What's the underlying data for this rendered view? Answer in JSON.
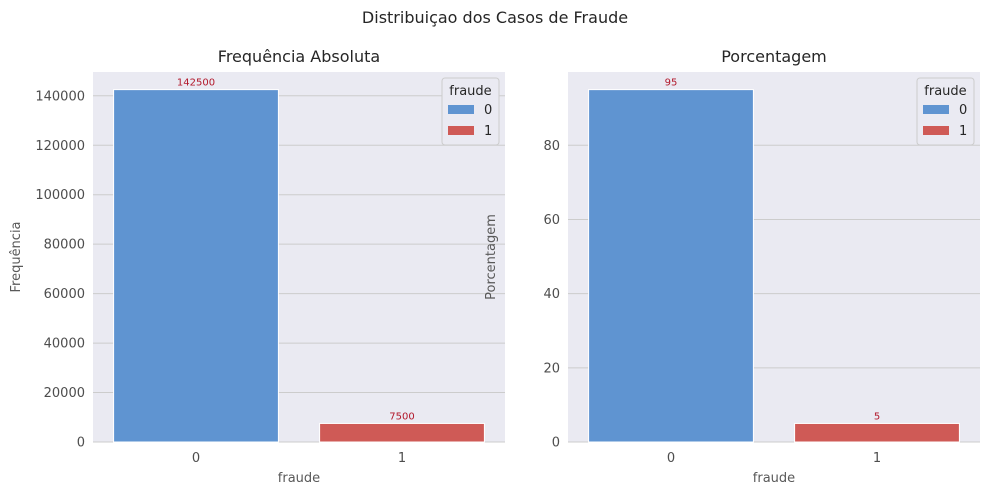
{
  "figure": {
    "suptitle": "Distribuiçao dos Casos de Fraude"
  },
  "colors": {
    "0": "#5f94d1",
    "1": "#cf5a56",
    "bar_label": "#b2182b",
    "axes_bg": "#eaeaf2",
    "grid": "#ffffff"
  },
  "chart_data": [
    {
      "type": "bar",
      "title": "Frequência Absoluta",
      "xlabel": "fraude",
      "ylabel": "Frequência",
      "categories": [
        "0",
        "1"
      ],
      "values": [
        142500,
        7500
      ],
      "bar_labels": [
        "142500",
        "7500"
      ],
      "ylim": [
        0,
        149625
      ],
      "yticks": [
        0,
        20000,
        40000,
        60000,
        80000,
        100000,
        120000,
        140000
      ],
      "grid": true,
      "legend": {
        "title": "fraude",
        "entries": [
          "0",
          "1"
        ],
        "placement": "top-right"
      }
    },
    {
      "type": "bar",
      "title": "Porcentagem",
      "xlabel": "fraude",
      "ylabel": "Porcentagem",
      "categories": [
        "0",
        "1"
      ],
      "values": [
        95,
        5
      ],
      "bar_labels": [
        "95",
        "5"
      ],
      "ylim": [
        0,
        99.75
      ],
      "yticks": [
        0,
        20,
        40,
        60,
        80
      ],
      "grid": true,
      "legend": {
        "title": "fraude",
        "entries": [
          "0",
          "1"
        ],
        "placement": "top-right"
      }
    }
  ]
}
